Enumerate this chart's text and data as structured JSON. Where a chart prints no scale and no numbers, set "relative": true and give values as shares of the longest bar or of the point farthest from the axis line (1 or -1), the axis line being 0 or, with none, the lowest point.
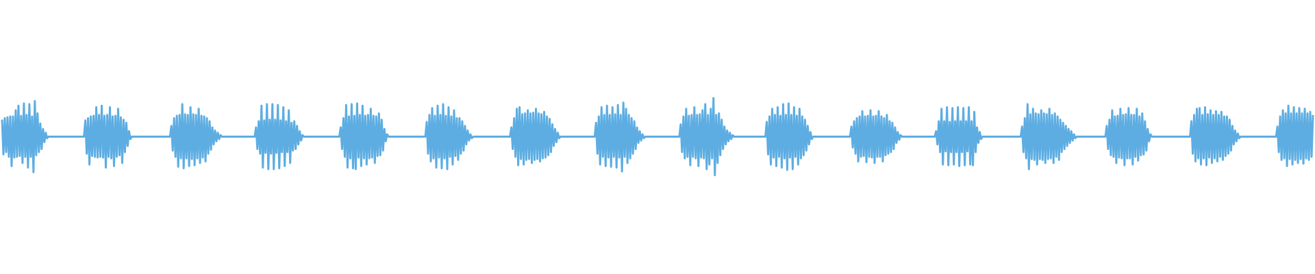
{
  "chart_data": {
    "type": "line",
    "relative": true,
    "categories": [
      null,
      null,
      null,
      null,
      null,
      null,
      null,
      null,
      null,
      null,
      null,
      null,
      null,
      null,
      null,
      null,
      null,
      null,
      null,
      null,
      null,
      null,
      null,
      null,
      null,
      null,
      null,
      null,
      null,
      null,
      null,
      null,
      null,
      null,
      null,
      null,
      null,
      null,
      null,
      null,
      null,
      null,
      null,
      null,
      null,
      null,
      null,
      null,
      null,
      null,
      null,
      null,
      null,
      null,
      null,
      null,
      null,
      null,
      null,
      null,
      null,
      null,
      null,
      null,
      null,
      null,
      null,
      null,
      null,
      null,
      null,
      null,
      null,
      null,
      null,
      null,
      null,
      null,
      null,
      null,
      null,
      null,
      null,
      null,
      null,
      null,
      null,
      null,
      null,
      null,
      null,
      null,
      null,
      null,
      null,
      null,
      null,
      null,
      null,
      null,
      null,
      null,
      null,
      null,
      null,
      null,
      null,
      null,
      null,
      null,
      null,
      null,
      null,
      null,
      null,
      null,
      null,
      null,
      null,
      null,
      null,
      null,
      null,
      null,
      null,
      null,
      null,
      null,
      null,
      null,
      null,
      null,
      null,
      null,
      null,
      null,
      null,
      null,
      null,
      null,
      null,
      null,
      null,
      null,
      null,
      null,
      null,
      null,
      null,
      null,
      null,
      null,
      null,
      null,
      null,
      null,
      null,
      null,
      null,
      null,
      null,
      null,
      null,
      null,
      null,
      null,
      null,
      null,
      null,
      null,
      null,
      null,
      null,
      null,
      null,
      null,
      null,
      null,
      null,
      null,
      null,
      null,
      null,
      null,
      null,
      null,
      null,
      null,
      null,
      null,
      null,
      null,
      null,
      null,
      null,
      null,
      null,
      null,
      null,
      null,
      null,
      null,
      null,
      null,
      null,
      null,
      null,
      null,
      null,
      null,
      null,
      null,
      null,
      null,
      null,
      null,
      null,
      null,
      null,
      null,
      null,
      null,
      null,
      null,
      null,
      null,
      null,
      null,
      null,
      null,
      null,
      null,
      null,
      null,
      null,
      null,
      null,
      null,
      null,
      null,
      null,
      null,
      null,
      null,
      null,
      null,
      null,
      null,
      null,
      null,
      null,
      null,
      null,
      null,
      null,
      null,
      null,
      null,
      null,
      null,
      null,
      null,
      null,
      null,
      null,
      null,
      null,
      null,
      null,
      null,
      null,
      null,
      null,
      null,
      null,
      null,
      null,
      null,
      null,
      null,
      null,
      null,
      null,
      null,
      null,
      null,
      null,
      null,
      null,
      null,
      null,
      null,
      null,
      null,
      null,
      null,
      null,
      null,
      null,
      null,
      null,
      null,
      null,
      null,
      null,
      null,
      null,
      null,
      null,
      null,
      null,
      null,
      null,
      null,
      null,
      null,
      null,
      null,
      null,
      null,
      null,
      null,
      null,
      null,
      null,
      null,
      null,
      null,
      null,
      null,
      null,
      null,
      null,
      null,
      null,
      null,
      null,
      null,
      null,
      null,
      null,
      null,
      null,
      null,
      null,
      null,
      null,
      null,
      null,
      null,
      null,
      null,
      null,
      null,
      null,
      null,
      null,
      null,
      null,
      null,
      null,
      null,
      null,
      null,
      null,
      null,
      null,
      null,
      null,
      null,
      null,
      null,
      null,
      null,
      null,
      null,
      null,
      null,
      null,
      null,
      null,
      null,
      null,
      null,
      null,
      null,
      null,
      null,
      null,
      null,
      null,
      null,
      null,
      null,
      null,
      null,
      null,
      null,
      null,
      null,
      null,
      null,
      null,
      null,
      null,
      null,
      null,
      null,
      null,
      null,
      null,
      null,
      null,
      null,
      null,
      null,
      null,
      null,
      null,
      null,
      null,
      null,
      null,
      null,
      null,
      null,
      null,
      null,
      null,
      null,
      null,
      null,
      null,
      null,
      null,
      null,
      null,
      null,
      null,
      null,
      null,
      null,
      null,
      null,
      null,
      null,
      null,
      null,
      null,
      null,
      null,
      null,
      null,
      null,
      null,
      null,
      null,
      null,
      null,
      null,
      null,
      null,
      null,
      null,
      null,
      null,
      null,
      null,
      null,
      null,
      null,
      null,
      null,
      null,
      null,
      null,
      null,
      null,
      null,
      null,
      null,
      null,
      null,
      null,
      null,
      null,
      null,
      null,
      null,
      null,
      null,
      null,
      null,
      null,
      null,
      null,
      null,
      null,
      null,
      null,
      null,
      null,
      null,
      null,
      null,
      null,
      null,
      null,
      null,
      null,
      null,
      null,
      null,
      null,
      null,
      null,
      null,
      null,
      null,
      null,
      null,
      null,
      null,
      null,
      null,
      null,
      null,
      null,
      null,
      null,
      null,
      null,
      null,
      null,
      null,
      null,
      null,
      null,
      null,
      null,
      null,
      null,
      null,
      null,
      null,
      null,
      null,
      null,
      null,
      null,
      null,
      null,
      null,
      null,
      null,
      null,
      null,
      null,
      null,
      null,
      null,
      null,
      null,
      null,
      null,
      null,
      null,
      null,
      null,
      null,
      null,
      null,
      null,
      null,
      null,
      null,
      null,
      null,
      null,
      null,
      null,
      null,
      null,
      null,
      null,
      null,
      null,
      null,
      null,
      null,
      null,
      null,
      null,
      null,
      null,
      null,
      null,
      null,
      null,
      null,
      null,
      null,
      null,
      null,
      null,
      null,
      null,
      null,
      null,
      null,
      null,
      null,
      null,
      null,
      null,
      null,
      null,
      null,
      null,
      null,
      null,
      null,
      null,
      null,
      null,
      null,
      null,
      null,
      null,
      null,
      null,
      null,
      null,
      null,
      null,
      null,
      null,
      null,
      null,
      null,
      null,
      null,
      null,
      null,
      null,
      null,
      null,
      null,
      null,
      null,
      null,
      null,
      null,
      null,
      null,
      null,
      null,
      null,
      null,
      null,
      null,
      null,
      null,
      null,
      null,
      null,
      null,
      null,
      null,
      null,
      null,
      null,
      null,
      null,
      null,
      null,
      null,
      null,
      null,
      null,
      null,
      null,
      null,
      null,
      null,
      null,
      null,
      null,
      null,
      null,
      null,
      null,
      null,
      null,
      null,
      null,
      null,
      null,
      null,
      null,
      null,
      null,
      null,
      null,
      null,
      null,
      null,
      null,
      null,
      null,
      null,
      null,
      null,
      null,
      null,
      null,
      null,
      null,
      null,
      null,
      null,
      null,
      null,
      null,
      null,
      null,
      null,
      null,
      null,
      null,
      null,
      null,
      null,
      null,
      null,
      null,
      null,
      null,
      null,
      null,
      null,
      null,
      null,
      null,
      null,
      null,
      null,
      null,
      null,
      null,
      null,
      null,
      null,
      null,
      null,
      null,
      null,
      null,
      null,
      null,
      null,
      null,
      null,
      null,
      null,
      null,
      null,
      null,
      null,
      null,
      null,
      null,
      null,
      null,
      null,
      null,
      null,
      null,
      null,
      null,
      null,
      null,
      null,
      null,
      null,
      null,
      null,
      null,
      null,
      null,
      null,
      null,
      null,
      null,
      null,
      null,
      null,
      null,
      null,
      null,
      null,
      null,
      null,
      null,
      null,
      null,
      null,
      null,
      null,
      null,
      null,
      null,
      null,
      null,
      null,
      null,
      null,
      null,
      null,
      null,
      null,
      null,
      null,
      null,
      null,
      null,
      null,
      null,
      null,
      null,
      null,
      null,
      null,
      null,
      null,
      null,
      null,
      null,
      null,
      null,
      null,
      null,
      null,
      null,
      null,
      null,
      null,
      null,
      null,
      null,
      null,
      null,
      null,
      null,
      null,
      null,
      null,
      null,
      null,
      null,
      null,
      null,
      null,
      null,
      null,
      null,
      null,
      null,
      null,
      null,
      null,
      null,
      null,
      null,
      null,
      null,
      null,
      null,
      null,
      null,
      null,
      null,
      null,
      null,
      null,
      null,
      null,
      null,
      null,
      null,
      null,
      null,
      null,
      null,
      null,
      null,
      null,
      null,
      null,
      null,
      null,
      null,
      null,
      null,
      null,
      null,
      null,
      null,
      null,
      null,
      null,
      null,
      null,
      null,
      null,
      null,
      null,
      null,
      null,
      null,
      null,
      null,
      null,
      null,
      null,
      null,
      null,
      null,
      null,
      null,
      null,
      null,
      null,
      null,
      null,
      null,
      null,
      null,
      null,
      null,
      null,
      null,
      null,
      null,
      null,
      null,
      null,
      null,
      null,
      null,
      null,
      null,
      null,
      null,
      null,
      null,
      null,
      null,
      null,
      null,
      null
    ],
    "series": [
      {
        "color": "#5dade2",
        "values": [
          0.72,
          0.27,
          0.74,
          0.3,
          0.75,
          0.24,
          0.76,
          0.12,
          0.76,
          0.23,
          0.84,
          0.24,
          0.9,
          0.25,
          0.77,
          0.16,
          0.93,
          0.24,
          0.78,
          0.1,
          0.92,
          0.24,
          0.76,
          0.04,
          0.96,
          0.26,
          0.8,
          0.3,
          0.67,
          0.34,
          0.6,
          0.43,
          0.55,
          0.48,
          0.5,
          0.5,
          0.5,
          0.5,
          0.5,
          0.5,
          0.5,
          0.5,
          0.5,
          0.5,
          0.5,
          0.5,
          0.5,
          0.5,
          0.5,
          0.5,
          0.5,
          0.5,
          0.5,
          0.5,
          0.5,
          0.5,
          0.5,
          0.5,
          0.5,
          0.5,
          0.5,
          0.71,
          0.28,
          0.74,
          0.14,
          0.76,
          0.25,
          0.77,
          0.24,
          0.88,
          0.23,
          0.78,
          0.24,
          0.9,
          0.23,
          0.77,
          0.1,
          0.78,
          0.24,
          0.88,
          0.22,
          0.76,
          0.12,
          0.77,
          0.24,
          0.86,
          0.26,
          0.75,
          0.16,
          0.72,
          0.3,
          0.68,
          0.38,
          0.57,
          0.47,
          0.5,
          0.5,
          0.5,
          0.5,
          0.5,
          0.5,
          0.5,
          0.5,
          0.5,
          0.5,
          0.5,
          0.5,
          0.5,
          0.5,
          0.5,
          0.5,
          0.5,
          0.5,
          0.5,
          0.5,
          0.5,
          0.5,
          0.5,
          0.5,
          0.5,
          0.5,
          0.5,
          0.5,
          0.5,
          0.64,
          0.32,
          0.74,
          0.24,
          0.77,
          0.11,
          0.78,
          0.22,
          0.92,
          0.09,
          0.79,
          0.22,
          0.78,
          0.12,
          0.88,
          0.21,
          0.79,
          0.13,
          0.78,
          0.22,
          0.86,
          0.16,
          0.77,
          0.23,
          0.76,
          0.18,
          0.74,
          0.28,
          0.7,
          0.33,
          0.62,
          0.4,
          0.58,
          0.44,
          0.55,
          0.47,
          0.52,
          0.5,
          0.5,
          0.5,
          0.5,
          0.5,
          0.5,
          0.5,
          0.5,
          0.5,
          0.5,
          0.5,
          0.5,
          0.5,
          0.5,
          0.5,
          0.5,
          0.5,
          0.5,
          0.5,
          0.5,
          0.5,
          0.5,
          0.5,
          0.5,
          0.5,
          0.62,
          0.34,
          0.7,
          0.28,
          0.9,
          0.1,
          0.71,
          0.29,
          0.92,
          0.08,
          0.72,
          0.28,
          0.92,
          0.08,
          0.72,
          0.29,
          0.91,
          0.09,
          0.71,
          0.3,
          0.88,
          0.12,
          0.7,
          0.3,
          0.84,
          0.16,
          0.68,
          0.32,
          0.7,
          0.34,
          0.64,
          0.4,
          0.57,
          0.45,
          0.52,
          0.5,
          0.5,
          0.5,
          0.5,
          0.5,
          0.5,
          0.5,
          0.5,
          0.5,
          0.5,
          0.5,
          0.5,
          0.5,
          0.5,
          0.5,
          0.5,
          0.5,
          0.5,
          0.5,
          0.5,
          0.5,
          0.5,
          0.5,
          0.5,
          0.5,
          0.5,
          0.5,
          0.62,
          0.34,
          0.74,
          0.24,
          0.91,
          0.1,
          0.76,
          0.22,
          0.92,
          0.09,
          0.77,
          0.08,
          0.93,
          0.23,
          0.78,
          0.12,
          0.9,
          0.22,
          0.77,
          0.14,
          0.78,
          0.22,
          0.86,
          0.23,
          0.77,
          0.16,
          0.76,
          0.25,
          0.8,
          0.26,
          0.72,
          0.32,
          0.6,
          0.44,
          0.53,
          0.5,
          0.5,
          0.5,
          0.5,
          0.5,
          0.5,
          0.5,
          0.5,
          0.5,
          0.5,
          0.5,
          0.5,
          0.5,
          0.5,
          0.5,
          0.5,
          0.5,
          0.5,
          0.5,
          0.5,
          0.5,
          0.5,
          0.5,
          0.5,
          0.5,
          0.5,
          0.5,
          0.5,
          0.69,
          0.28,
          0.78,
          0.18,
          0.87,
          0.22,
          0.77,
          0.1,
          0.9,
          0.23,
          0.78,
          0.09,
          0.92,
          0.22,
          0.77,
          0.08,
          0.88,
          0.24,
          0.76,
          0.14,
          0.84,
          0.25,
          0.74,
          0.2,
          0.74,
          0.28,
          0.7,
          0.32,
          0.64,
          0.4,
          0.58,
          0.45,
          0.53,
          0.48,
          0.5,
          0.5,
          0.5,
          0.5,
          0.5,
          0.5,
          0.5,
          0.5,
          0.5,
          0.5,
          0.5,
          0.5,
          0.5,
          0.5,
          0.5,
          0.5,
          0.5,
          0.5,
          0.5,
          0.5,
          0.5,
          0.5,
          0.5,
          0.5,
          0.5,
          0.5,
          0.5,
          0.5,
          0.62,
          0.34,
          0.74,
          0.24,
          0.86,
          0.13,
          0.88,
          0.21,
          0.79,
          0.14,
          0.8,
          0.2,
          0.84,
          0.21,
          0.8,
          0.16,
          0.81,
          0.2,
          0.86,
          0.21,
          0.8,
          0.18,
          0.79,
          0.22,
          0.82,
          0.23,
          0.76,
          0.26,
          0.73,
          0.3,
          0.66,
          0.38,
          0.6,
          0.43,
          0.55,
          0.48,
          0.5,
          0.5,
          0.5,
          0.5,
          0.5,
          0.5,
          0.5,
          0.5,
          0.5,
          0.5,
          0.5,
          0.5,
          0.5,
          0.5,
          0.5,
          0.5,
          0.5,
          0.5,
          0.5,
          0.5,
          0.5,
          0.5,
          0.5,
          0.5,
          0.5,
          0.5,
          0.68,
          0.28,
          0.76,
          0.14,
          0.88,
          0.24,
          0.78,
          0.12,
          0.9,
          0.23,
          0.78,
          0.11,
          0.88,
          0.24,
          0.79,
          0.1,
          0.91,
          0.23,
          0.78,
          0.05,
          0.94,
          0.24,
          0.86,
          0.16,
          0.78,
          0.22,
          0.74,
          0.28,
          0.7,
          0.34,
          0.62,
          0.42,
          0.57,
          0.45,
          0.53,
          0.48,
          0.5,
          0.5,
          0.5,
          0.5,
          0.5,
          0.5,
          0.5,
          0.5,
          0.5,
          0.5,
          0.5,
          0.5,
          0.5,
          0.5,
          0.5,
          0.5,
          0.5,
          0.5,
          0.5,
          0.5,
          0.5,
          0.5,
          0.5,
          0.5,
          0.5,
          0.5,
          0.66,
          0.3,
          0.76,
          0.22,
          0.86,
          0.24,
          0.77,
          0.13,
          0.78,
          0.24,
          0.88,
          0.22,
          0.78,
          0.12,
          0.79,
          0.23,
          0.84,
          0.22,
          0.92,
          0.08,
          0.78,
          0.14,
          0.86,
          0.22,
          1.0,
          0.0,
          0.78,
          0.16,
          0.8,
          0.26,
          0.72,
          0.34,
          0.63,
          0.4,
          0.58,
          0.44,
          0.55,
          0.47,
          0.52,
          0.5,
          0.5,
          0.5,
          0.5,
          0.5,
          0.5,
          0.5,
          0.5,
          0.5,
          0.5,
          0.5,
          0.5,
          0.5,
          0.5,
          0.5,
          0.5,
          0.5,
          0.5,
          0.5,
          0.5,
          0.5,
          0.5,
          0.5,
          0.5,
          0.69,
          0.27,
          0.76,
          0.14,
          0.86,
          0.23,
          0.78,
          0.12,
          0.88,
          0.24,
          0.77,
          0.1,
          0.92,
          0.22,
          0.78,
          0.07,
          0.93,
          0.23,
          0.78,
          0.08,
          0.88,
          0.24,
          0.77,
          0.14,
          0.86,
          0.22,
          0.76,
          0.26,
          0.72,
          0.32,
          0.64,
          0.4,
          0.56,
          0.47,
          0.5,
          0.5,
          0.5,
          0.5,
          0.5,
          0.5,
          0.5,
          0.5,
          0.5,
          0.5,
          0.5,
          0.5,
          0.5,
          0.5,
          0.5,
          0.5,
          0.5,
          0.5,
          0.5,
          0.5,
          0.5,
          0.5,
          0.5,
          0.5,
          0.5,
          0.5,
          0.5,
          0.5,
          0.63,
          0.36,
          0.7,
          0.28,
          0.74,
          0.18,
          0.76,
          0.24,
          0.83,
          0.25,
          0.76,
          0.17,
          0.77,
          0.24,
          0.84,
          0.23,
          0.76,
          0.16,
          0.77,
          0.24,
          0.83,
          0.24,
          0.76,
          0.18,
          0.74,
          0.26,
          0.78,
          0.28,
          0.7,
          0.3,
          0.68,
          0.34,
          0.62,
          0.42,
          0.56,
          0.46,
          0.52,
          0.5,
          0.5,
          0.5,
          0.5,
          0.5,
          0.5,
          0.5,
          0.5,
          0.5,
          0.5,
          0.5,
          0.5,
          0.5,
          0.5,
          0.5,
          0.5,
          0.5,
          0.5,
          0.5,
          0.5,
          0.5,
          0.5,
          0.5,
          0.5,
          0.5,
          0.57,
          0.4,
          0.7,
          0.3,
          0.86,
          0.14,
          0.7,
          0.31,
          0.88,
          0.13,
          0.69,
          0.3,
          0.87,
          0.14,
          0.7,
          0.3,
          0.88,
          0.12,
          0.7,
          0.3,
          0.87,
          0.13,
          0.7,
          0.31,
          0.88,
          0.14,
          0.7,
          0.13,
          0.82,
          0.3,
          0.62,
          0.42,
          0.56,
          0.47,
          0.5,
          0.5,
          0.5,
          0.5,
          0.5,
          0.5,
          0.5,
          0.5,
          0.5,
          0.5,
          0.5,
          0.5,
          0.5,
          0.5,
          0.5,
          0.5,
          0.5,
          0.5,
          0.5,
          0.5,
          0.5,
          0.5,
          0.5,
          0.5,
          0.5,
          0.5,
          0.5,
          0.5,
          0.5,
          0.63,
          0.3,
          0.74,
          0.22,
          0.92,
          0.08,
          0.79,
          0.21,
          0.86,
          0.2,
          0.8,
          0.14,
          0.79,
          0.21,
          0.84,
          0.2,
          0.8,
          0.16,
          0.79,
          0.21,
          0.86,
          0.22,
          0.78,
          0.16,
          0.8,
          0.24,
          0.76,
          0.2,
          0.72,
          0.3,
          0.68,
          0.34,
          0.64,
          0.38,
          0.6,
          0.42,
          0.57,
          0.45,
          0.53,
          0.48,
          0.5,
          0.5,
          0.5,
          0.5,
          0.5,
          0.5,
          0.5,
          0.5,
          0.5,
          0.5,
          0.5,
          0.5,
          0.5,
          0.5,
          0.5,
          0.5,
          0.5,
          0.5,
          0.5,
          0.5,
          0.5,
          0.5,
          0.64,
          0.34,
          0.72,
          0.26,
          0.84,
          0.24,
          0.76,
          0.16,
          0.77,
          0.23,
          0.86,
          0.22,
          0.78,
          0.13,
          0.79,
          0.22,
          0.87,
          0.22,
          0.78,
          0.14,
          0.78,
          0.24,
          0.86,
          0.19,
          0.76,
          0.26,
          0.8,
          0.27,
          0.7,
          0.32,
          0.6,
          0.44,
          0.53,
          0.5,
          0.5,
          0.5,
          0.5,
          0.5,
          0.5,
          0.5,
          0.5,
          0.5,
          0.5,
          0.5,
          0.5,
          0.5,
          0.5,
          0.5,
          0.5,
          0.5,
          0.5,
          0.5,
          0.5,
          0.5,
          0.5,
          0.5,
          0.5,
          0.5,
          0.5,
          0.5,
          0.5,
          0.5,
          0.7,
          0.28,
          0.78,
          0.18,
          0.86,
          0.22,
          0.87,
          0.14,
          0.78,
          0.22,
          0.88,
          0.13,
          0.79,
          0.23,
          0.84,
          0.16,
          0.78,
          0.22,
          0.83,
          0.18,
          0.78,
          0.24,
          0.82,
          0.2,
          0.76,
          0.25,
          0.76,
          0.28,
          0.72,
          0.32,
          0.64,
          0.4,
          0.58,
          0.44,
          0.54,
          0.48,
          0.5,
          0.5,
          0.5,
          0.5,
          0.5,
          0.5,
          0.5,
          0.5,
          0.5,
          0.5,
          0.5,
          0.5,
          0.5,
          0.5,
          0.5,
          0.5,
          0.5,
          0.5,
          0.5,
          0.5,
          0.5,
          0.5,
          0.5,
          0.5,
          0.5,
          0.5,
          0.5,
          0.63,
          0.3,
          0.76,
          0.2,
          0.84,
          0.22,
          0.8,
          0.12,
          0.9,
          0.21,
          0.8,
          0.14,
          0.88,
          0.2,
          0.8,
          0.16,
          0.87,
          0.21,
          0.8,
          0.15,
          0.86,
          0.22,
          0.8,
          0.2,
          0.82,
          0.24,
          0.78
        ]
      }
    ]
  }
}
